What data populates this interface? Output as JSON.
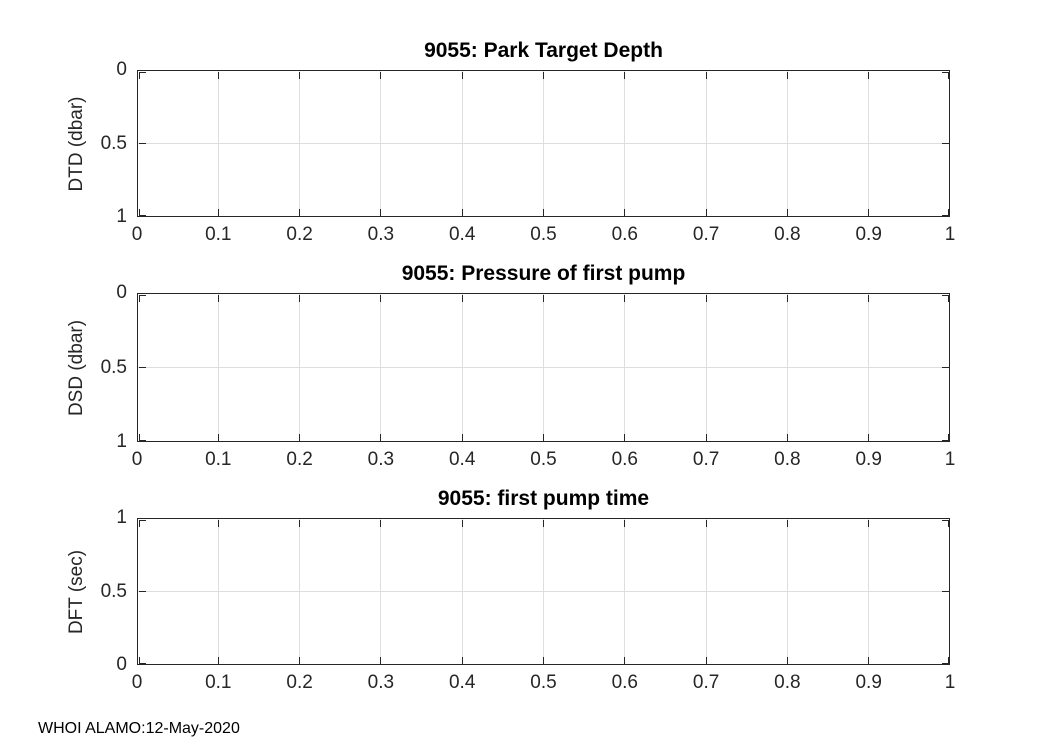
{
  "figure": {
    "bg_color": "#ffffff",
    "axis_color": "#262626",
    "grid_color": "#dedede",
    "title_color": "#000000",
    "footer_text": "WHOI ALAMO:12-May-2020"
  },
  "chart_data": [
    {
      "type": "line",
      "title": "9055: Park Target Depth",
      "xlabel": "",
      "ylabel": "DTD (dbar)",
      "xlim": [
        0,
        1
      ],
      "ylim": [
        0,
        1
      ],
      "y_direction": "reverse",
      "grid": true,
      "legend": null,
      "xticks": [
        0,
        0.1,
        0.2,
        0.3,
        0.4,
        0.5,
        0.6,
        0.7,
        0.8,
        0.9,
        1
      ],
      "xtick_labels": [
        "0",
        "0.1",
        "0.2",
        "0.3",
        "0.4",
        "0.5",
        "0.6",
        "0.7",
        "0.8",
        "0.9",
        "1"
      ],
      "yticks": [
        0,
        0.5,
        1
      ],
      "ytick_labels": [
        "0",
        "0.5",
        "1"
      ],
      "series": []
    },
    {
      "type": "line",
      "title": "9055: Pressure of first pump",
      "xlabel": "",
      "ylabel": "DSD (dbar)",
      "xlim": [
        0,
        1
      ],
      "ylim": [
        0,
        1
      ],
      "y_direction": "reverse",
      "grid": true,
      "legend": null,
      "xticks": [
        0,
        0.1,
        0.2,
        0.3,
        0.4,
        0.5,
        0.6,
        0.7,
        0.8,
        0.9,
        1
      ],
      "xtick_labels": [
        "0",
        "0.1",
        "0.2",
        "0.3",
        "0.4",
        "0.5",
        "0.6",
        "0.7",
        "0.8",
        "0.9",
        "1"
      ],
      "yticks": [
        0,
        0.5,
        1
      ],
      "ytick_labels": [
        "0",
        "0.5",
        "1"
      ],
      "series": []
    },
    {
      "type": "line",
      "title": "9055: first pump time",
      "xlabel": "",
      "ylabel": "DFT (sec)",
      "xlim": [
        0,
        1
      ],
      "ylim": [
        0,
        1
      ],
      "y_direction": "normal",
      "grid": true,
      "legend": null,
      "xticks": [
        0,
        0.1,
        0.2,
        0.3,
        0.4,
        0.5,
        0.6,
        0.7,
        0.8,
        0.9,
        1
      ],
      "xtick_labels": [
        "0",
        "0.1",
        "0.2",
        "0.3",
        "0.4",
        "0.5",
        "0.6",
        "0.7",
        "0.8",
        "0.9",
        "1"
      ],
      "yticks": [
        0,
        0.5,
        1
      ],
      "ytick_labels": [
        "0",
        "0.5",
        "1"
      ],
      "series": []
    }
  ]
}
